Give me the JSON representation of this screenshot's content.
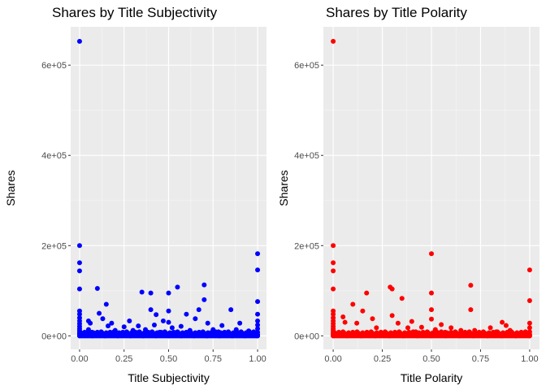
{
  "chart_data": [
    {
      "type": "scatter",
      "title": "Shares by Title Subjectivity",
      "xlabel": "Title Subjectivity",
      "ylabel": "Shares",
      "xlim": [
        -0.05,
        1.05
      ],
      "ylim": [
        -30000,
        685000
      ],
      "xticks": [
        0,
        0.25,
        0.5,
        0.75,
        1
      ],
      "xtick_labels": [
        "0.00",
        "0.25",
        "0.50",
        "0.75",
        "1.00"
      ],
      "yticks": [
        0,
        200000,
        400000,
        600000
      ],
      "ytick_labels": [
        "0e+00",
        "2e+05",
        "4e+05",
        "6e+05"
      ],
      "grid": true,
      "color": "#0000ff",
      "points": [
        [
          0,
          652900
        ],
        [
          0,
          200000
        ],
        [
          0,
          162000
        ],
        [
          0,
          144000
        ],
        [
          0,
          104000
        ],
        [
          0,
          55000
        ],
        [
          0,
          48000
        ],
        [
          0,
          40000
        ],
        [
          0,
          33000
        ],
        [
          0,
          27000
        ],
        [
          0,
          21000
        ],
        [
          0,
          16000
        ],
        [
          0,
          12000
        ],
        [
          0,
          8000
        ],
        [
          0,
          5000
        ],
        [
          0,
          2000
        ],
        [
          0.05,
          33000
        ],
        [
          0.06,
          28000
        ],
        [
          0.05,
          14000
        ],
        [
          0.07,
          8000
        ],
        [
          0.09,
          4000
        ],
        [
          0.1,
          105000
        ],
        [
          0.11,
          50000
        ],
        [
          0.13,
          38000
        ],
        [
          0.15,
          70000
        ],
        [
          0.16,
          22000
        ],
        [
          0.18,
          28000
        ],
        [
          0.2,
          12000
        ],
        [
          0.22,
          6000
        ],
        [
          0.25,
          20000
        ],
        [
          0.28,
          33000
        ],
        [
          0.3,
          12000
        ],
        [
          0.33,
          22000
        ],
        [
          0.35,
          97000
        ],
        [
          0.37,
          14000
        ],
        [
          0.4,
          95000
        ],
        [
          0.4,
          58000
        ],
        [
          0.42,
          24000
        ],
        [
          0.43,
          47000
        ],
        [
          0.45,
          8000
        ],
        [
          0.47,
          33000
        ],
        [
          0.5,
          95000
        ],
        [
          0.5,
          55000
        ],
        [
          0.5,
          30000
        ],
        [
          0.52,
          18000
        ],
        [
          0.55,
          108000
        ],
        [
          0.57,
          21000
        ],
        [
          0.6,
          48000
        ],
        [
          0.62,
          12000
        ],
        [
          0.65,
          38000
        ],
        [
          0.67,
          58000
        ],
        [
          0.7,
          113000
        ],
        [
          0.7,
          80000
        ],
        [
          0.72,
          28000
        ],
        [
          0.75,
          14000
        ],
        [
          0.78,
          9000
        ],
        [
          0.8,
          23000
        ],
        [
          0.85,
          58000
        ],
        [
          0.88,
          14000
        ],
        [
          0.9,
          28000
        ],
        [
          0.95,
          11000
        ],
        [
          0.96,
          5000
        ],
        [
          1,
          182000
        ],
        [
          1,
          146000
        ],
        [
          1,
          76000
        ],
        [
          1,
          48000
        ],
        [
          1,
          33000
        ],
        [
          1,
          24000
        ],
        [
          1,
          16000
        ],
        [
          1,
          8000
        ],
        [
          1,
          3000
        ]
      ],
      "cluster_y": [
        0,
        10000
      ]
    },
    {
      "type": "scatter",
      "title": "Shares by Title Polarity",
      "xlabel": "Title Polarity",
      "ylabel": "Shares",
      "xlim": [
        -0.05,
        1.05
      ],
      "ylim": [
        -30000,
        685000
      ],
      "xticks": [
        0,
        0.25,
        0.5,
        0.75,
        1
      ],
      "xtick_labels": [
        "0.00",
        "0.25",
        "0.50",
        "0.75",
        "1.00"
      ],
      "yticks": [
        0,
        200000,
        400000,
        600000
      ],
      "ytick_labels": [
        "0e+00",
        "2e+05",
        "4e+05",
        "6e+05"
      ],
      "grid": true,
      "color": "#ff0000",
      "points": [
        [
          0,
          652900
        ],
        [
          0,
          200000
        ],
        [
          0,
          162000
        ],
        [
          0,
          144000
        ],
        [
          0,
          104000
        ],
        [
          0,
          55000
        ],
        [
          0,
          48000
        ],
        [
          0,
          40000
        ],
        [
          0,
          33000
        ],
        [
          0,
          27000
        ],
        [
          0,
          21000
        ],
        [
          0,
          16000
        ],
        [
          0,
          12000
        ],
        [
          0,
          8000
        ],
        [
          0,
          5000
        ],
        [
          0,
          2000
        ],
        [
          0.05,
          42000
        ],
        [
          0.06,
          30000
        ],
        [
          0.1,
          70000
        ],
        [
          0.12,
          28000
        ],
        [
          0.15,
          55000
        ],
        [
          0.17,
          95000
        ],
        [
          0.2,
          38000
        ],
        [
          0.22,
          18000
        ],
        [
          0.29,
          108000
        ],
        [
          0.3,
          104000
        ],
        [
          0.3,
          45000
        ],
        [
          0.33,
          28000
        ],
        [
          0.35,
          83000
        ],
        [
          0.38,
          18000
        ],
        [
          0.4,
          32000
        ],
        [
          0.42,
          9000
        ],
        [
          0.45,
          19000
        ],
        [
          0.5,
          182000
        ],
        [
          0.5,
          95000
        ],
        [
          0.5,
          58000
        ],
        [
          0.5,
          37000
        ],
        [
          0.52,
          14000
        ],
        [
          0.55,
          25000
        ],
        [
          0.57,
          8000
        ],
        [
          0.6,
          18000
        ],
        [
          0.62,
          6000
        ],
        [
          0.65,
          12000
        ],
        [
          0.7,
          112000
        ],
        [
          0.7,
          58000
        ],
        [
          0.72,
          12000
        ],
        [
          0.75,
          6000
        ],
        [
          0.8,
          18000
        ],
        [
          0.83,
          9000
        ],
        [
          0.86,
          30000
        ],
        [
          0.88,
          23000
        ],
        [
          0.9,
          12000
        ],
        [
          1,
          146000
        ],
        [
          1,
          78000
        ],
        [
          1,
          28000
        ],
        [
          1,
          18000
        ],
        [
          1,
          9000
        ],
        [
          1,
          3000
        ]
      ],
      "cluster_y": [
        0,
        10000
      ]
    }
  ]
}
